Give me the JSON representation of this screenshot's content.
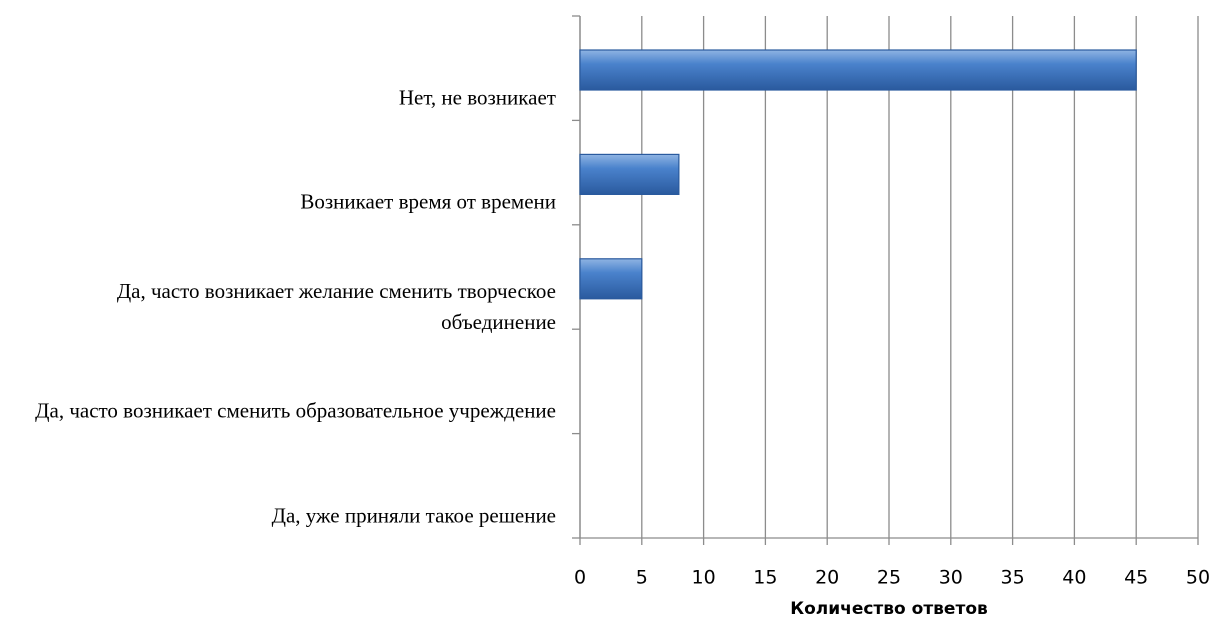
{
  "chart_data": {
    "type": "bar",
    "orientation": "horizontal",
    "categories": [
      "Нет, не возникает",
      "Возникает время от времени",
      "Да, часто возникает желание сменить творческое объединение",
      "Да, часто возникает сменить образовательное учреждение",
      "Да, уже приняли такое решение"
    ],
    "values": [
      45,
      8,
      5,
      0,
      0
    ],
    "color": "#3a73bd",
    "xlim": [
      0,
      50
    ],
    "xticks": [
      0,
      5,
      10,
      15,
      20,
      25,
      30,
      35,
      40,
      45,
      50
    ],
    "grid": true,
    "xlabel": "Количество ответов"
  }
}
